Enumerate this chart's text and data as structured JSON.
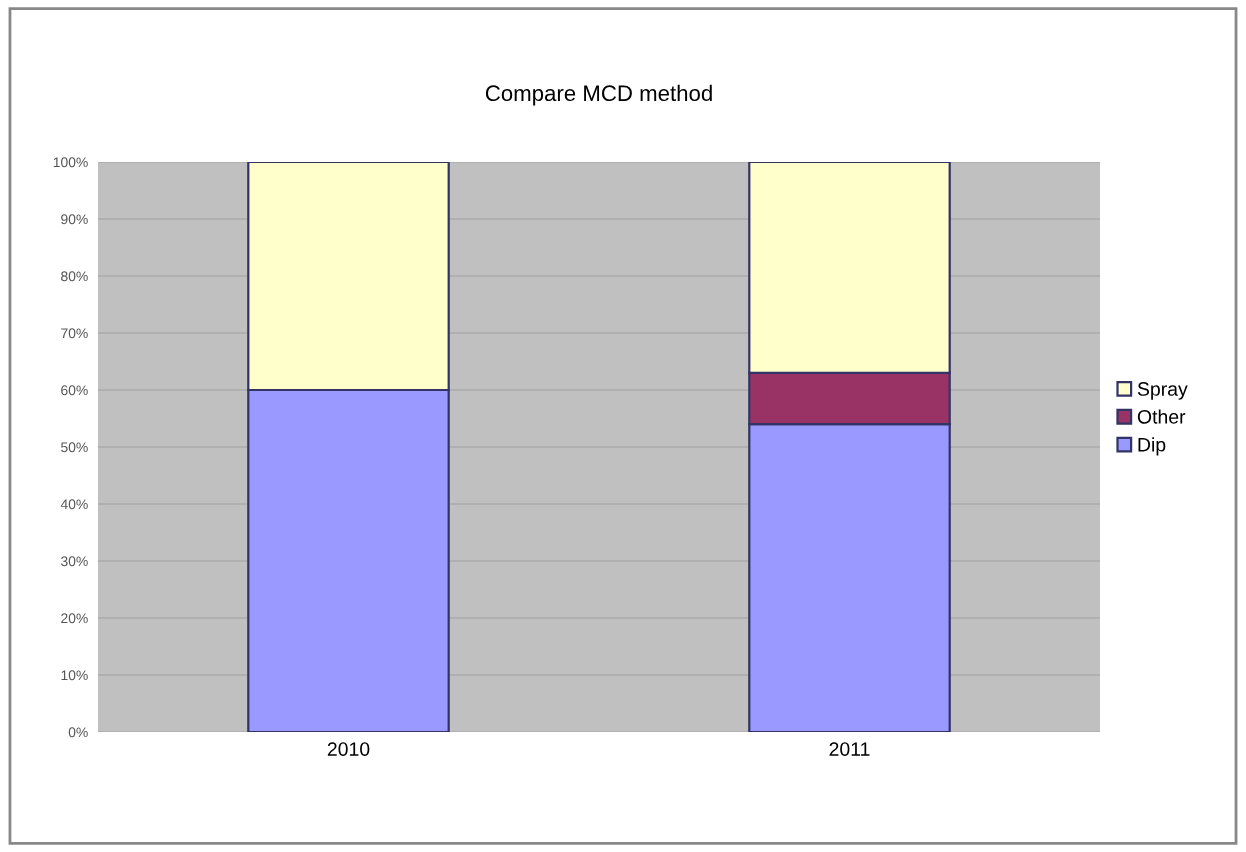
{
  "chart_data": {
    "type": "bar",
    "title": "Compare MCD method",
    "categories": [
      "2010",
      "2011"
    ],
    "stacked": true,
    "series": [
      {
        "name": "Dip",
        "color": "#9999ff",
        "values": [
          60,
          54
        ]
      },
      {
        "name": "Other",
        "color": "#993366",
        "values": [
          0,
          9
        ]
      },
      {
        "name": "Spray",
        "color": "#ffffcc",
        "values": [
          40,
          37
        ]
      }
    ],
    "ylim": [
      0,
      100
    ],
    "yticks": [
      {
        "value": 0,
        "label": "0%"
      },
      {
        "value": 10,
        "label": "10%"
      },
      {
        "value": 20,
        "label": "20%"
      },
      {
        "value": 30,
        "label": "30%"
      },
      {
        "value": 40,
        "label": "40%"
      },
      {
        "value": 50,
        "label": "50%"
      },
      {
        "value": 60,
        "label": "60%"
      },
      {
        "value": 70,
        "label": "70%"
      },
      {
        "value": 80,
        "label": "80%"
      },
      {
        "value": 90,
        "label": "90%"
      },
      {
        "value": 100,
        "label": "100%"
      }
    ],
    "grid": "y",
    "legend": "right"
  }
}
